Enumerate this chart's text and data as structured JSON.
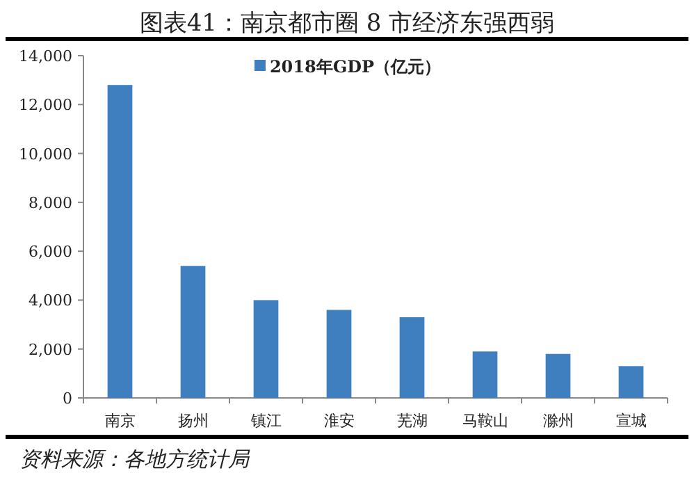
{
  "chart_data": {
    "type": "bar",
    "title": "图表41：南京都市圈 8 市经济东强西弱",
    "categories": [
      "南京",
      "扬州",
      "镇江",
      "淮安",
      "芜湖",
      "马鞍山",
      "滁州",
      "宣城"
    ],
    "series": [
      {
        "name": "2018年GDP（亿元）",
        "color": "#3f7fc0",
        "values": [
          12800,
          5400,
          4000,
          3600,
          3300,
          1900,
          1800,
          1300
        ]
      }
    ],
    "ylim": [
      0,
      14000
    ],
    "yticks": [
      {
        "value": 0,
        "label": "0"
      },
      {
        "value": 2000,
        "label": "2,000"
      },
      {
        "value": 4000,
        "label": "4,000"
      },
      {
        "value": 6000,
        "label": "6,000"
      },
      {
        "value": 8000,
        "label": "8,000"
      },
      {
        "value": 10000,
        "label": "10,000"
      },
      {
        "value": 12000,
        "label": "12,000"
      },
      {
        "value": 14000,
        "label": "14,000"
      }
    ],
    "legend": "top",
    "grid": false,
    "annotations": [
      "资料来源：各地方统计局"
    ]
  }
}
